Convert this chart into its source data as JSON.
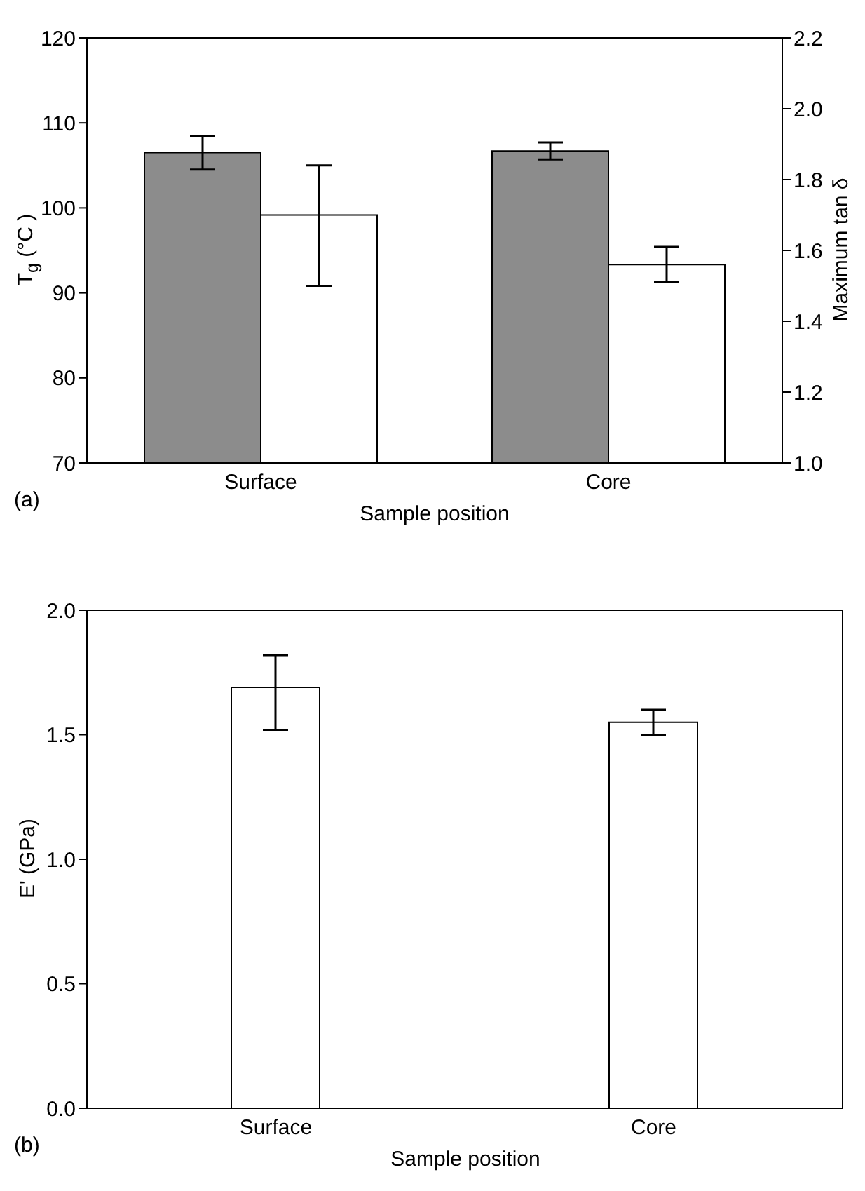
{
  "chart_data": [
    {
      "type": "bar",
      "categories": [
        "Surface",
        "Core"
      ],
      "xlabel": "Sample position",
      "ylabel": "T$_{g}$ (°C )",
      "y2label": "Maximum tan δ",
      "annotations": [
        "(a)"
      ],
      "series": [
        {
          "color": "#8c8c8c",
          "values": [
            106.5,
            106.7
          ],
          "errors": [
            2,
            1
          ]
        },
        {
          "color": "#ffffff",
          "values": [
            1.7,
            1.56
          ],
          "errors": [
            [
              1.5,
              1.84
            ],
            0.05
          ],
          "axis": "y2"
        }
      ],
      "ylim": [
        70,
        120
      ],
      "yticks": [
        70,
        80,
        90,
        100,
        110,
        120
      ],
      "y2lim": [
        1.0,
        2.2
      ],
      "y2ticks": [
        {
          "value": 1.0,
          "label": "1.0"
        },
        {
          "value": 1.2,
          "label": "1.2"
        },
        {
          "value": 1.4,
          "label": "1.4"
        },
        {
          "value": 1.6,
          "label": "1.6"
        },
        {
          "value": 1.8,
          "label": "1.8"
        },
        {
          "value": 2.0,
          "label": "2.0"
        },
        {
          "value": 2.2,
          "label": "2.2"
        }
      ]
    },
    {
      "type": "bar",
      "categories": [
        "Surface",
        "Core"
      ],
      "xlabel": "Sample position",
      "ylabel": "E' (GPa)",
      "annotations": [
        "(b)"
      ],
      "series": [
        {
          "color": "#ffffff",
          "values": [
            1.69,
            1.55
          ],
          "errors": [
            [
              1.52,
              1.82
            ],
            0.05
          ]
        }
      ],
      "ylim": [
        0,
        2
      ],
      "yticks": [
        {
          "value": 0,
          "label": "0.0"
        },
        {
          "value": 0.5,
          "label": "0.5"
        },
        {
          "value": 1,
          "label": "1.0"
        },
        {
          "value": 1.5,
          "label": "1.5"
        },
        {
          "value": 2,
          "label": "2.0"
        }
      ]
    }
  ]
}
